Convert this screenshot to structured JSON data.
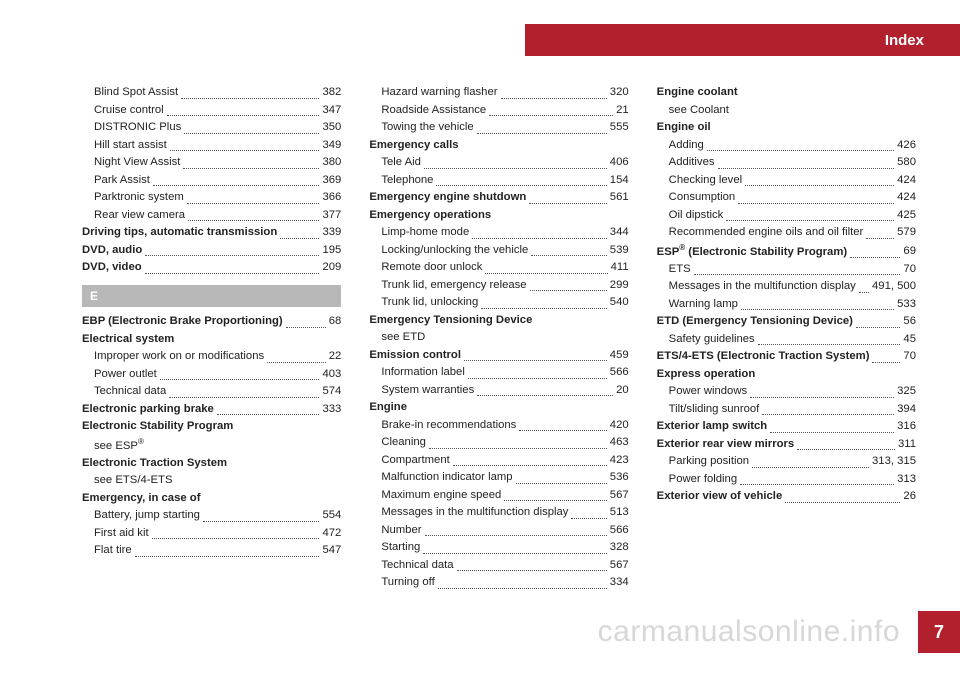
{
  "header": {
    "title": "Index"
  },
  "page_number": "7",
  "watermark": "carmanualsonline.info",
  "section_letter": "E",
  "columns": [
    [
      {
        "t": "sub",
        "label": "Blind Spot Assist",
        "pg": "382"
      },
      {
        "t": "sub",
        "label": "Cruise control",
        "pg": "347"
      },
      {
        "t": "sub",
        "label": "DISTRONIC Plus",
        "pg": "350"
      },
      {
        "t": "sub",
        "label": "Hill start assist",
        "pg": "349"
      },
      {
        "t": "sub",
        "label": "Night View Assist",
        "pg": "380"
      },
      {
        "t": "sub",
        "label": "Park Assist",
        "pg": "369"
      },
      {
        "t": "sub",
        "label": "Parktronic system",
        "pg": "366"
      },
      {
        "t": "sub",
        "label": "Rear view camera",
        "pg": "377"
      },
      {
        "t": "head",
        "label": "Driving tips, automatic transmission",
        "pg": "339"
      },
      {
        "t": "head",
        "label": "DVD, audio",
        "pg": "195"
      },
      {
        "t": "head",
        "label": "DVD, video",
        "pg": "209"
      },
      {
        "t": "section"
      },
      {
        "t": "head",
        "label": "EBP (Electronic Brake Proportioning)",
        "pg": "68"
      },
      {
        "t": "head",
        "label": "Electrical system",
        "nopg": true
      },
      {
        "t": "sub",
        "label": "Improper work on or modifications",
        "pg": "22"
      },
      {
        "t": "sub",
        "label": "Power outlet",
        "pg": "403"
      },
      {
        "t": "sub",
        "label": "Technical data",
        "pg": "574"
      },
      {
        "t": "head",
        "label": "Electronic parking brake",
        "pg": "333"
      },
      {
        "t": "head",
        "label": "Electronic Stability Program",
        "nopg": true
      },
      {
        "t": "sub",
        "label": "see ESP®",
        "nopg": true,
        "raw": "see ESP<sup>®</sup>"
      },
      {
        "t": "head",
        "label": "Electronic Traction System",
        "nopg": true
      },
      {
        "t": "sub",
        "label": "see ETS/4-ETS",
        "nopg": true
      },
      {
        "t": "head",
        "label": "Emergency, in case of",
        "nopg": true
      },
      {
        "t": "sub",
        "label": "Battery, jump starting",
        "pg": "554"
      },
      {
        "t": "sub",
        "label": "First aid kit",
        "pg": "472"
      },
      {
        "t": "sub",
        "label": "Flat tire",
        "pg": "547"
      }
    ],
    [
      {
        "t": "sub",
        "label": "Hazard warning flasher",
        "pg": "320"
      },
      {
        "t": "sub",
        "label": "Roadside Assistance",
        "pg": "21"
      },
      {
        "t": "sub",
        "label": "Towing the vehicle",
        "pg": "555"
      },
      {
        "t": "head",
        "label": "Emergency calls",
        "nopg": true
      },
      {
        "t": "sub",
        "label": "Tele Aid",
        "pg": "406"
      },
      {
        "t": "sub",
        "label": "Telephone",
        "pg": "154"
      },
      {
        "t": "head",
        "label": "Emergency engine shutdown",
        "pg": "561"
      },
      {
        "t": "head",
        "label": "Emergency operations",
        "nopg": true
      },
      {
        "t": "sub",
        "label": "Limp-home mode",
        "pg": "344"
      },
      {
        "t": "sub",
        "label": "Locking/unlocking the vehicle",
        "pg": "539"
      },
      {
        "t": "sub",
        "label": "Remote door unlock",
        "pg": "411"
      },
      {
        "t": "sub",
        "label": "Trunk lid, emergency release",
        "pg": "299"
      },
      {
        "t": "sub",
        "label": "Trunk lid, unlocking",
        "pg": "540"
      },
      {
        "t": "head",
        "label": "Emergency Tensioning Device",
        "nopg": true
      },
      {
        "t": "sub",
        "label": "see ETD",
        "nopg": true
      },
      {
        "t": "head",
        "label": "Emission control",
        "pg": "459"
      },
      {
        "t": "sub",
        "label": "Information label",
        "pg": "566"
      },
      {
        "t": "sub",
        "label": "System warranties",
        "pg": "20"
      },
      {
        "t": "head",
        "label": "Engine",
        "nopg": true
      },
      {
        "t": "sub",
        "label": "Brake-in recommendations",
        "pg": "420"
      },
      {
        "t": "sub",
        "label": "Cleaning",
        "pg": "463"
      },
      {
        "t": "sub",
        "label": "Compartment",
        "pg": "423"
      },
      {
        "t": "sub",
        "label": "Malfunction indicator lamp",
        "pg": "536"
      },
      {
        "t": "sub",
        "label": "Maximum engine speed",
        "pg": "567"
      },
      {
        "t": "sub",
        "label": "Messages in the multifunction display",
        "pg": "513"
      },
      {
        "t": "sub",
        "label": "Number",
        "pg": "566"
      },
      {
        "t": "sub",
        "label": "Starting",
        "pg": "328"
      },
      {
        "t": "sub",
        "label": "Technical data",
        "pg": "567"
      },
      {
        "t": "sub",
        "label": "Turning off",
        "pg": "334"
      }
    ],
    [
      {
        "t": "head",
        "label": "Engine coolant",
        "nopg": true
      },
      {
        "t": "sub",
        "label": "see Coolant",
        "nopg": true
      },
      {
        "t": "head",
        "label": "Engine oil",
        "nopg": true
      },
      {
        "t": "sub",
        "label": "Adding",
        "pg": "426"
      },
      {
        "t": "sub",
        "label": "Additives",
        "pg": "580"
      },
      {
        "t": "sub",
        "label": "Checking level",
        "pg": "424"
      },
      {
        "t": "sub",
        "label": "Consumption",
        "pg": "424"
      },
      {
        "t": "sub",
        "label": "Oil dipstick",
        "pg": "425"
      },
      {
        "t": "sub",
        "label": "Recommended engine oils and oil filter",
        "pg": "579"
      },
      {
        "t": "head",
        "label": "ESP® (Electronic Stability Program)",
        "pg": "69",
        "raw": "ESP<sup>®</sup> (Electronic Stability Program)"
      },
      {
        "t": "sub",
        "label": "ETS",
        "pg": "70"
      },
      {
        "t": "sub",
        "label": "Messages in the multifunction display",
        "pg": "491, 500"
      },
      {
        "t": "sub",
        "label": "Warning lamp",
        "pg": "533"
      },
      {
        "t": "head",
        "label": "ETD (Emergency Tensioning Device)",
        "pg": "56"
      },
      {
        "t": "sub",
        "label": "Safety guidelines",
        "pg": "45"
      },
      {
        "t": "head",
        "label": "ETS/4-ETS (Electronic Traction System)",
        "pg": "70"
      },
      {
        "t": "head",
        "label": "Express operation",
        "nopg": true
      },
      {
        "t": "sub",
        "label": "Power windows",
        "pg": "325"
      },
      {
        "t": "sub",
        "label": "Tilt/sliding sunroof",
        "pg": "394"
      },
      {
        "t": "head",
        "label": "Exterior lamp switch",
        "pg": "316"
      },
      {
        "t": "head",
        "label": "Exterior rear view mirrors",
        "pg": "311"
      },
      {
        "t": "sub",
        "label": "Parking position",
        "pg": "313, 315"
      },
      {
        "t": "sub",
        "label": "Power folding",
        "pg": "313"
      },
      {
        "t": "head",
        "label": "Exterior view of vehicle",
        "pg": "26"
      }
    ]
  ]
}
